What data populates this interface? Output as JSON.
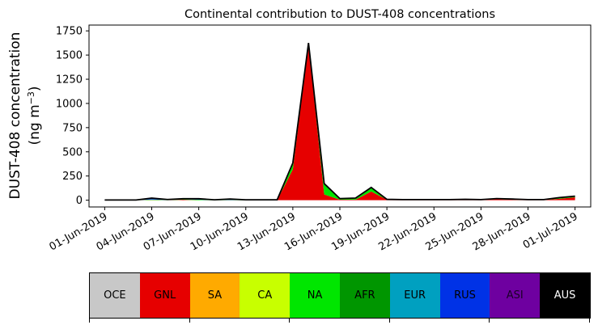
{
  "chart_data": {
    "type": "area",
    "stacked": true,
    "title": "Continental contribution to DUST-408 concentrations",
    "ylabel": "DUST-408 concentration",
    "yunit": "(ng m⁻³)",
    "xlabel": "",
    "ylim": [
      -70,
      1810
    ],
    "xlim": [
      "2019-05-31",
      "2019-07-02"
    ],
    "yticks": [
      "0",
      "250",
      "500",
      "750",
      "1000",
      "1250",
      "1500",
      "1750"
    ],
    "xticks": [
      "01-Jun-2019",
      "04-Jun-2019",
      "07-Jun-2019",
      "10-Jun-2019",
      "13-Jun-2019",
      "16-Jun-2019",
      "19-Jun-2019",
      "22-Jun-2019",
      "25-Jun-2019",
      "28-Jun-2019",
      "01-Jul-2019"
    ],
    "x": [
      "2019-06-01",
      "2019-06-02",
      "2019-06-03",
      "2019-06-04",
      "2019-06-05",
      "2019-06-06",
      "2019-06-07",
      "2019-06-08",
      "2019-06-09",
      "2019-06-10",
      "2019-06-11",
      "2019-06-12",
      "2019-06-13",
      "2019-06-14",
      "2019-06-15",
      "2019-06-16",
      "2019-06-17",
      "2019-06-18",
      "2019-06-19",
      "2019-06-20",
      "2019-06-21",
      "2019-06-22",
      "2019-06-23",
      "2019-06-24",
      "2019-06-25",
      "2019-06-26",
      "2019-06-27",
      "2019-06-28",
      "2019-06-29",
      "2019-06-30",
      "2019-07-01"
    ],
    "grid": false,
    "series": [
      {
        "name": "OCE",
        "color": "#c8c8c8",
        "values": [
          0,
          0,
          0,
          0,
          0,
          0,
          0,
          0,
          0,
          0,
          0,
          0,
          0,
          0,
          0,
          0,
          0,
          0,
          0,
          0,
          0,
          0,
          0,
          0,
          0,
          0,
          0,
          0,
          0,
          0,
          0
        ]
      },
      {
        "name": "GNL",
        "color": "#e60000",
        "values": [
          0,
          0,
          0,
          2,
          0,
          5,
          0,
          0,
          0,
          0,
          0,
          0,
          320,
          1600,
          60,
          5,
          5,
          90,
          5,
          2,
          2,
          2,
          2,
          2,
          2,
          10,
          5,
          2,
          2,
          15,
          30
        ]
      },
      {
        "name": "SA",
        "color": "#ffaa00",
        "values": [
          0,
          0,
          0,
          0,
          0,
          0,
          0,
          0,
          0,
          0,
          0,
          0,
          0,
          0,
          0,
          0,
          0,
          0,
          0,
          0,
          0,
          0,
          0,
          0,
          0,
          0,
          0,
          0,
          0,
          0,
          0
        ]
      },
      {
        "name": "CA",
        "color": "#c8ff00",
        "values": [
          0,
          0,
          0,
          0,
          0,
          0,
          0,
          0,
          0,
          0,
          0,
          0,
          0,
          0,
          0,
          0,
          0,
          0,
          0,
          0,
          0,
          0,
          0,
          0,
          0,
          0,
          0,
          0,
          0,
          0,
          0
        ]
      },
      {
        "name": "NA",
        "color": "#00e600",
        "values": [
          0,
          0,
          0,
          5,
          2,
          5,
          5,
          2,
          2,
          2,
          2,
          2,
          60,
          20,
          110,
          10,
          15,
          40,
          2,
          2,
          2,
          2,
          2,
          5,
          2,
          5,
          5,
          2,
          2,
          10,
          10
        ]
      },
      {
        "name": "AFR",
        "color": "#009600",
        "values": [
          0,
          0,
          0,
          0,
          0,
          0,
          0,
          0,
          0,
          0,
          0,
          0,
          0,
          0,
          0,
          0,
          0,
          0,
          0,
          0,
          0,
          0,
          0,
          0,
          0,
          0,
          0,
          0,
          0,
          0,
          0
        ]
      },
      {
        "name": "EUR",
        "color": "#00a0c0",
        "values": [
          0,
          0,
          0,
          0,
          0,
          0,
          0,
          0,
          0,
          0,
          0,
          0,
          0,
          0,
          0,
          0,
          0,
          0,
          0,
          0,
          0,
          0,
          0,
          0,
          0,
          0,
          0,
          0,
          0,
          0,
          0
        ]
      },
      {
        "name": "RUS",
        "color": "#0032e6",
        "values": [
          2,
          2,
          2,
          15,
          5,
          5,
          10,
          2,
          10,
          2,
          2,
          2,
          5,
          5,
          2,
          2,
          2,
          2,
          2,
          2,
          2,
          2,
          2,
          2,
          2,
          2,
          2,
          2,
          2,
          2,
          2
        ]
      },
      {
        "name": "ASI",
        "color": "#6e00a0",
        "values": [
          0,
          0,
          0,
          0,
          0,
          0,
          0,
          0,
          0,
          0,
          0,
          0,
          0,
          0,
          0,
          0,
          0,
          0,
          0,
          0,
          0,
          0,
          0,
          0,
          0,
          0,
          0,
          0,
          0,
          0,
          0
        ]
      },
      {
        "name": "AUS",
        "color": "#000000",
        "values": [
          0,
          0,
          0,
          0,
          0,
          0,
          0,
          0,
          0,
          0,
          0,
          0,
          0,
          0,
          0,
          0,
          0,
          0,
          0,
          0,
          0,
          0,
          0,
          0,
          0,
          0,
          0,
          0,
          0,
          0,
          0
        ]
      }
    ]
  }
}
